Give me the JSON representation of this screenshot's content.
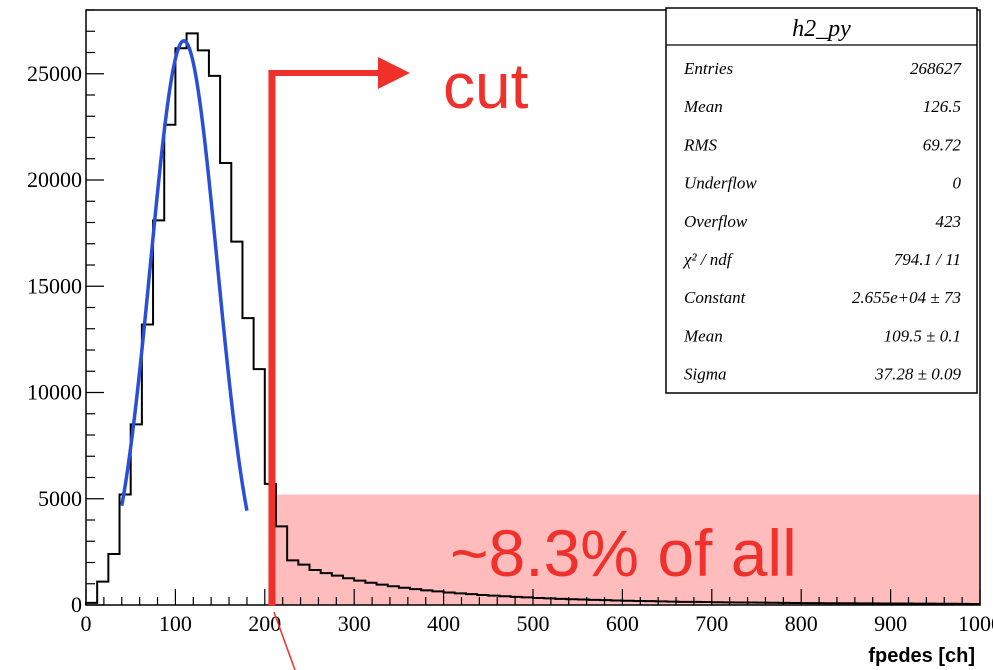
{
  "chart_data": {
    "type": "bar",
    "title": "",
    "xlabel": "fpedes [ch]",
    "ylabel": "",
    "xlim": [
      0,
      1000
    ],
    "ylim": [
      0,
      28000
    ],
    "x_ticks": [
      0,
      100,
      200,
      300,
      400,
      500,
      600,
      700,
      800,
      900,
      1000
    ],
    "x_tick_labels": [
      "0",
      "100",
      "200",
      "300",
      "400",
      "500",
      "600",
      "700",
      "800",
      "900",
      "1000"
    ],
    "y_ticks": [
      0,
      5000,
      10000,
      15000,
      20000,
      25000
    ],
    "y_tick_labels": [
      "0",
      "5000",
      "10000",
      "15000",
      "20000",
      "25000"
    ],
    "bin_width": 12.5,
    "x": [
      6.25,
      18.75,
      31.25,
      43.75,
      56.25,
      68.75,
      81.25,
      93.75,
      106.25,
      118.75,
      131.25,
      143.75,
      156.25,
      168.75,
      181.25,
      193.75,
      206.25,
      218.75,
      231.25,
      243.75,
      256.25,
      268.75,
      281.25,
      293.75,
      306.25,
      318.75,
      331.25,
      343.75,
      356.25,
      368.75,
      381.25,
      393.75,
      406.25,
      418.75,
      431.25,
      443.75,
      456.25,
      468.75,
      481.25,
      493.75,
      506.25,
      518.75,
      531.25,
      543.75,
      556.25,
      568.75,
      581.25,
      593.75,
      606.25,
      618.75,
      631.25,
      643.75,
      656.25,
      668.75,
      681.25,
      693.75,
      706.25,
      718.75,
      731.25,
      743.75,
      756.25,
      768.75,
      781.25,
      793.75,
      806.25,
      818.75,
      831.25,
      843.75,
      856.25,
      868.75,
      881.25,
      893.75,
      906.25,
      918.75,
      931.25,
      943.75,
      956.25,
      968.75,
      981.25,
      993.75
    ],
    "series": [
      {
        "name": "h2_py",
        "values": [
          100,
          1100,
          2400,
          5200,
          8500,
          13200,
          18100,
          22600,
          26200,
          26900,
          26100,
          24900,
          20800,
          17100,
          13500,
          11100,
          5700,
          3700,
          2100,
          1900,
          1650,
          1500,
          1380,
          1260,
          1150,
          1050,
          960,
          880,
          810,
          750,
          690,
          640,
          590,
          550,
          510,
          470,
          440,
          410,
          380,
          360,
          330,
          310,
          290,
          270,
          260,
          240,
          230,
          210,
          200,
          190,
          180,
          170,
          160,
          150,
          145,
          140,
          130,
          125,
          120,
          115,
          110,
          105,
          100,
          95,
          90,
          88,
          85,
          82,
          80,
          78,
          75,
          72,
          70,
          68,
          65,
          62,
          60,
          58,
          55,
          50
        ]
      }
    ],
    "fit": {
      "function": "gaus",
      "constant": 26550,
      "mean": 109.5,
      "sigma": 37.28,
      "range": [
        40,
        180
      ],
      "color": "#2a4fd6"
    },
    "cut": {
      "x": 208,
      "color": "#f0302a",
      "region_top_y": 5200
    }
  },
  "stats_box": {
    "title": "h2_py",
    "rows": [
      {
        "label": "Entries",
        "value": "268627"
      },
      {
        "label": "Mean",
        "value": "126.5"
      },
      {
        "label": "RMS",
        "value": "69.72"
      },
      {
        "label": "Underflow",
        "value": "0"
      },
      {
        "label": "Overflow",
        "value": "423"
      },
      {
        "label": "χ² / ndf",
        "value": "794.1 / 11"
      },
      {
        "label": "Constant",
        "value": "2.655e+04 ± 73"
      },
      {
        "label": "Mean",
        "value": "109.5 ± 0.1"
      },
      {
        "label": "Sigma",
        "value": "37.28 ± 0.09"
      }
    ]
  },
  "annotations": {
    "cut_label": "cut",
    "fraction_label": "~8.3% of all"
  },
  "colors": {
    "histogram": "#000000",
    "fit": "#2a4fd6",
    "cut": "#f0302a",
    "region_fill": "#ffbcbc"
  }
}
